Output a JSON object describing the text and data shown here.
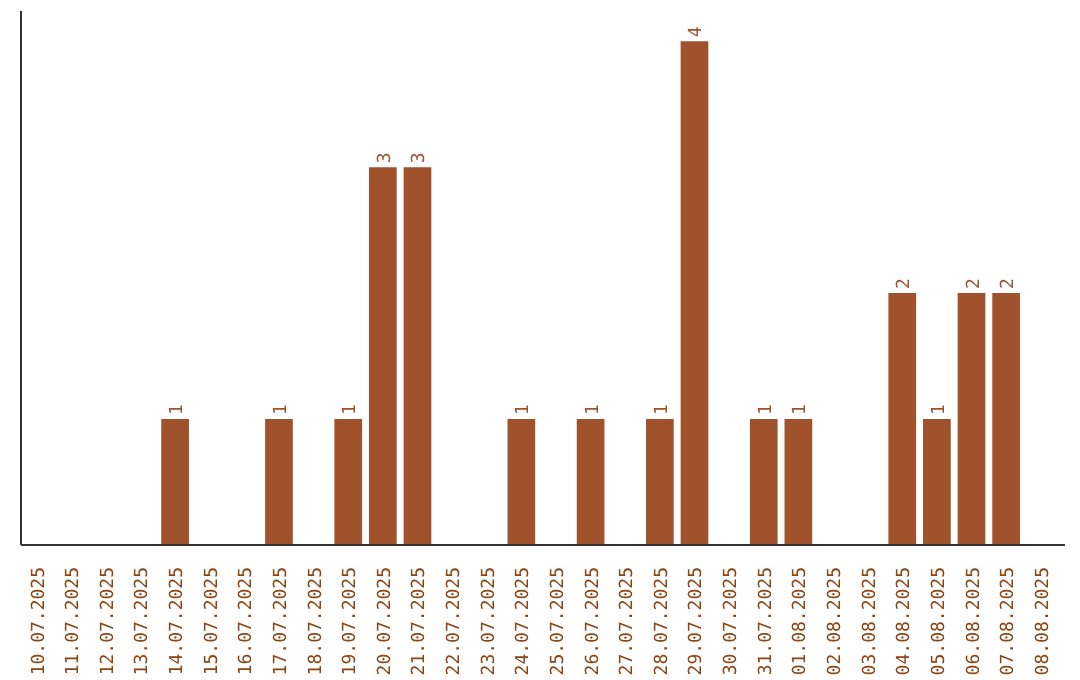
{
  "chart_data": {
    "type": "bar",
    "categories": [
      "10.07.2025",
      "11.07.2025",
      "12.07.2025",
      "13.07.2025",
      "14.07.2025",
      "15.07.2025",
      "16.07.2025",
      "17.07.2025",
      "18.07.2025",
      "19.07.2025",
      "20.07.2025",
      "21.07.2025",
      "22.07.2025",
      "23.07.2025",
      "24.07.2025",
      "25.07.2025",
      "26.07.2025",
      "27.07.2025",
      "28.07.2025",
      "29.07.2025",
      "30.07.2025",
      "31.07.2025",
      "01.08.2025",
      "02.08.2025",
      "03.08.2025",
      "04.08.2025",
      "05.08.2025",
      "06.08.2025",
      "07.08.2025",
      "08.08.2025"
    ],
    "values": [
      0,
      0,
      0,
      0,
      1,
      0,
      0,
      1,
      0,
      1,
      3,
      3,
      0,
      0,
      1,
      0,
      1,
      0,
      1,
      4,
      0,
      1,
      1,
      0,
      0,
      2,
      1,
      2,
      2,
      0
    ],
    "value_labels": [
      null,
      null,
      null,
      null,
      "1",
      null,
      null,
      "1",
      null,
      "1",
      "3",
      "3",
      null,
      null,
      "1",
      null,
      "1",
      null,
      "1",
      "4",
      null,
      "1",
      "1",
      null,
      null,
      "2",
      "1",
      "2",
      "2",
      null
    ],
    "color": "#a0522d",
    "grid": false
  }
}
